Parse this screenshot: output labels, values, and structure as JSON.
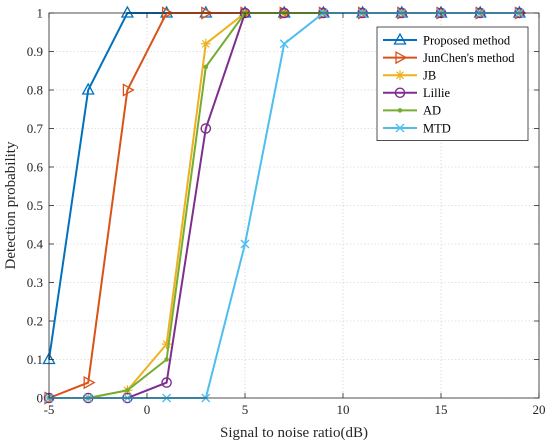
{
  "chart_data": {
    "type": "line",
    "title": "",
    "xlabel": "Signal to noise ratio(dB)",
    "ylabel": "Detection probability",
    "xlim": [
      -5,
      20
    ],
    "ylim": [
      0,
      1
    ],
    "xticks": [
      -5,
      0,
      5,
      10,
      15,
      20
    ],
    "yticks": [
      0,
      0.1,
      0.2,
      0.3,
      0.4,
      0.5,
      0.6,
      0.7,
      0.8,
      0.9,
      1
    ],
    "grid": true,
    "legend_position": "top-right",
    "x": [
      -5,
      -3,
      -1,
      1,
      3,
      5,
      7,
      9,
      11,
      13,
      15,
      17,
      19
    ],
    "series": [
      {
        "name": "Proposed method",
        "color": "#0072BD",
        "marker": "triangle-up",
        "values": [
          0.1,
          0.8,
          1,
          1,
          1,
          1,
          1,
          1,
          1,
          1,
          1,
          1,
          1
        ]
      },
      {
        "name": "JunChen's method",
        "color": "#D95319",
        "marker": "triangle-right",
        "values": [
          0,
          0.04,
          0.8,
          1,
          1,
          1,
          1,
          1,
          1,
          1,
          1,
          1,
          1
        ]
      },
      {
        "name": "JB",
        "color": "#EDB120",
        "marker": "asterisk",
        "values": [
          0,
          0,
          0.02,
          0.14,
          0.92,
          1,
          1,
          1,
          1,
          1,
          1,
          1,
          1
        ]
      },
      {
        "name": "Lillie",
        "color": "#7E2F8E",
        "marker": "circle",
        "values": [
          0,
          0,
          0,
          0.04,
          0.7,
          1,
          1,
          1,
          1,
          1,
          1,
          1,
          1
        ]
      },
      {
        "name": "AD",
        "color": "#77AC30",
        "marker": "dot",
        "values": [
          0,
          0,
          0.02,
          0.1,
          0.86,
          1,
          1,
          1,
          1,
          1,
          1,
          1,
          1
        ]
      },
      {
        "name": "MTD",
        "color": "#4DBEEE",
        "marker": "x",
        "values": [
          0,
          0,
          0,
          0,
          0,
          0.4,
          0.92,
          1,
          1,
          1,
          1,
          1,
          1
        ]
      }
    ]
  }
}
